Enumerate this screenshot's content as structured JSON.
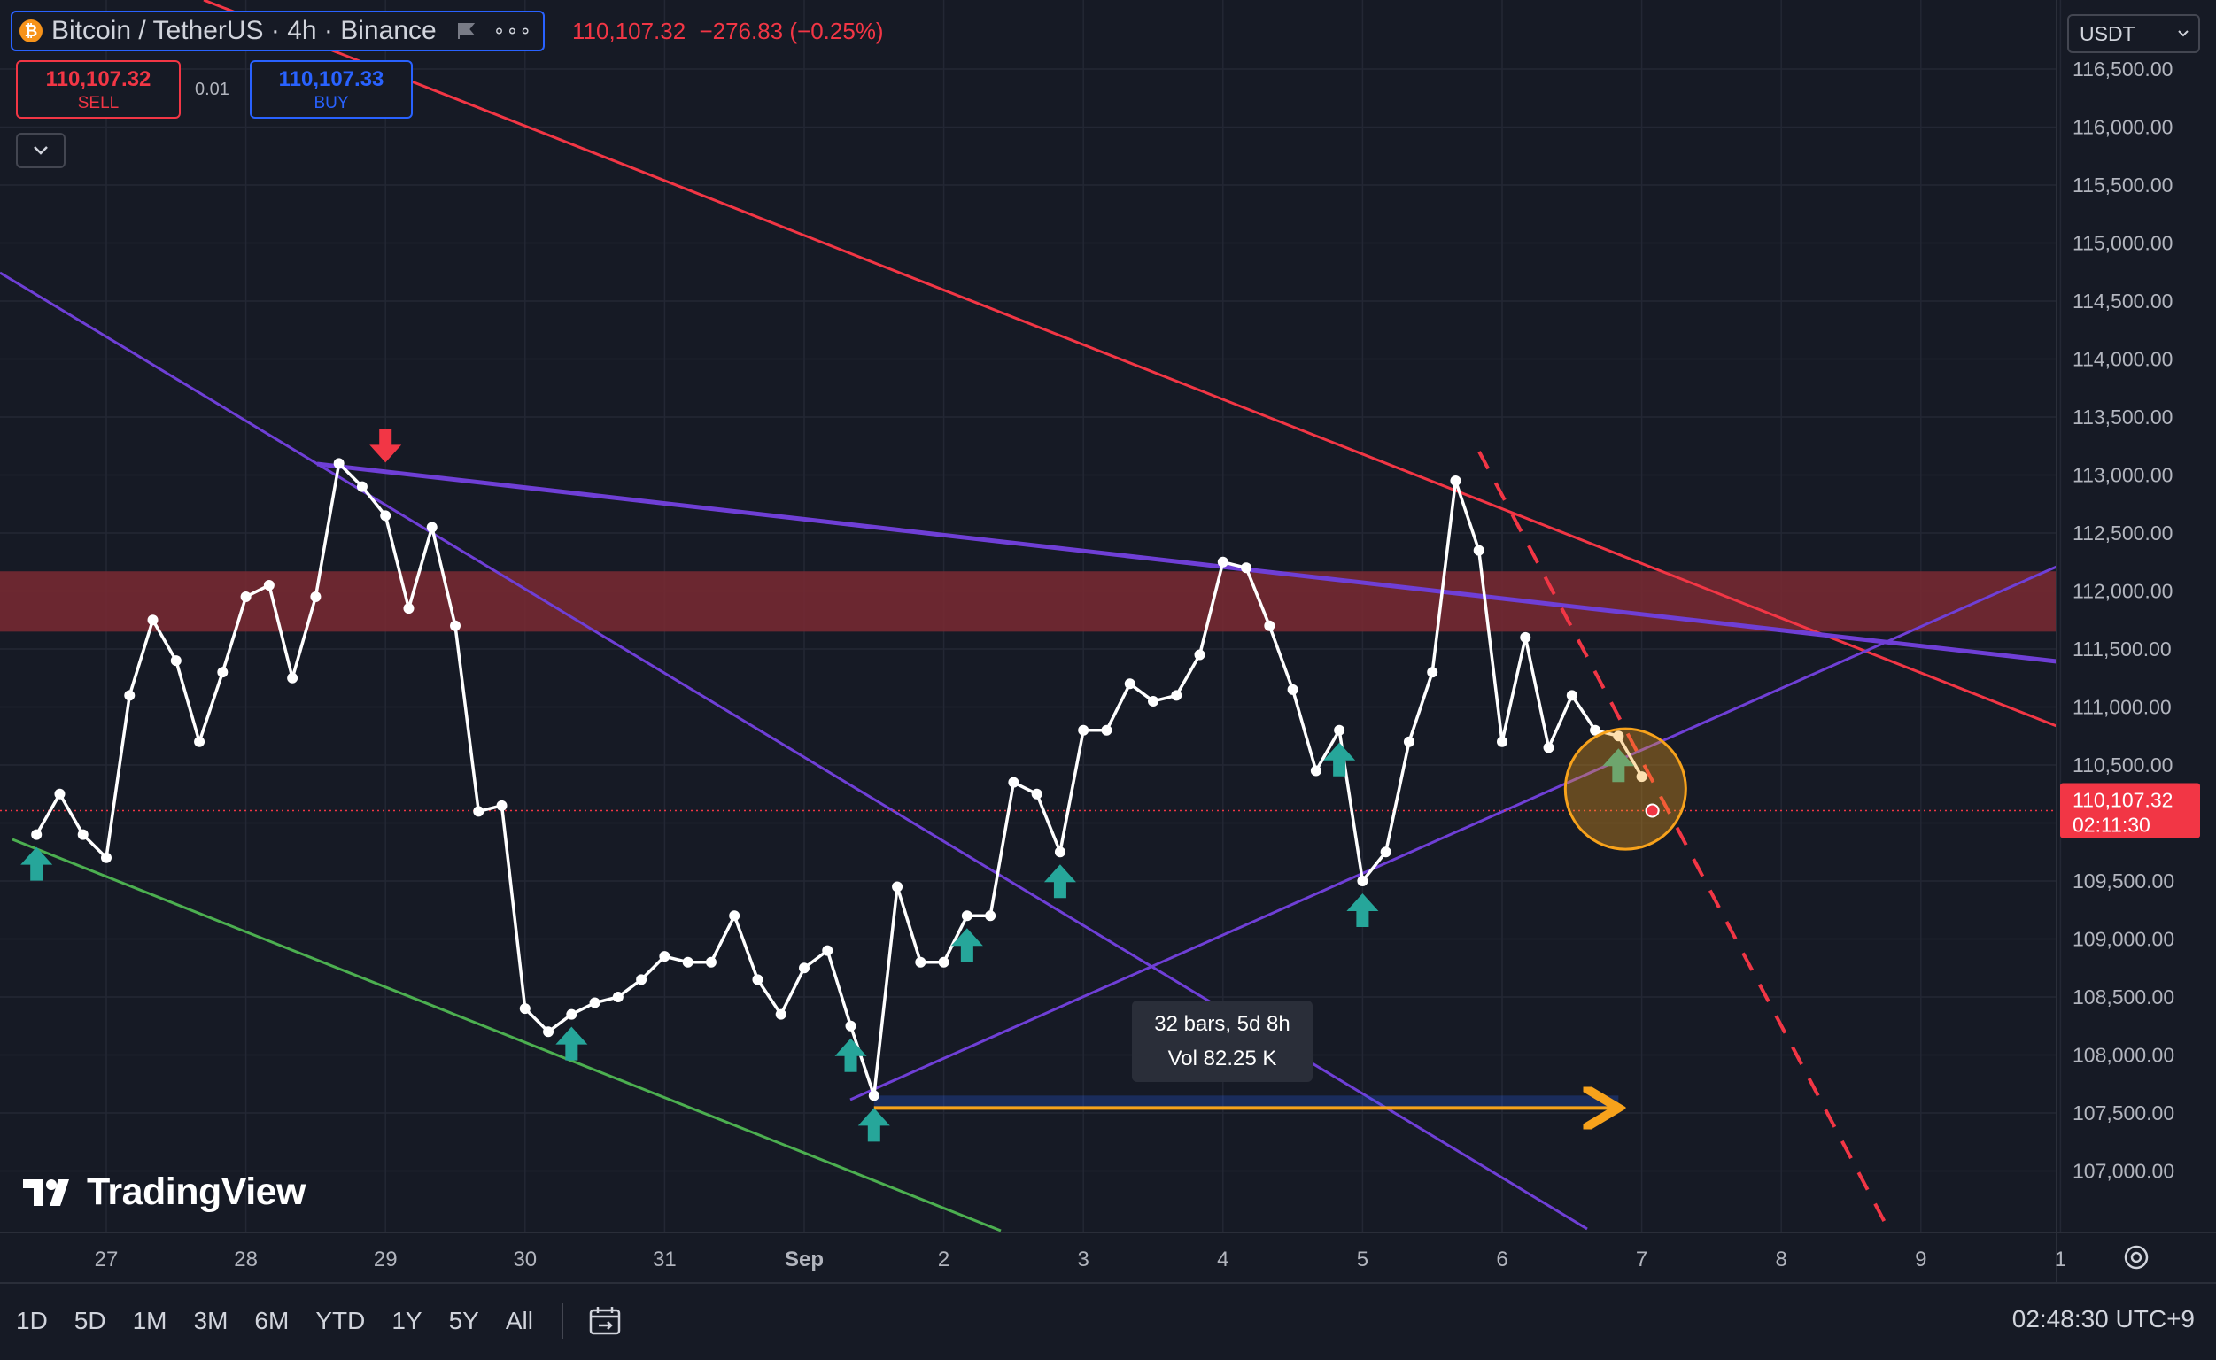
{
  "header": {
    "symbol_title": "Bitcoin / TetherUS · 4h · Binance",
    "last_price_text": "110,107.32",
    "change_text": "−276.83 (−0.25%)"
  },
  "trade": {
    "sell_price": "110,107.32",
    "sell_label": "SELL",
    "spread": "0.01",
    "buy_price": "110,107.33",
    "buy_label": "BUY"
  },
  "currency": "USDT",
  "price_label": {
    "price": "110,107.32",
    "countdown": "02:11:30"
  },
  "measure": {
    "bars": "32 bars, 5d 8h",
    "volume": "Vol 82.25 K"
  },
  "ranges": [
    "1D",
    "5D",
    "1M",
    "3M",
    "6M",
    "YTD",
    "1Y",
    "5Y",
    "All"
  ],
  "clock": "02:48:30 UTC+9",
  "logo_text": "TradingView",
  "colors": {
    "background": "#161a25",
    "line": "#ffffff",
    "resistance_zone": "#7a2a33",
    "red_trend": "#f23645",
    "purple_trend": "#6f3fd6",
    "green_trend": "#4caf50",
    "buy_arrow": "#26a69a",
    "sell_arrow": "#f23645",
    "highlight": "#f7a21b"
  },
  "chart_data": {
    "type": "line",
    "x_tick_labels": [
      "27",
      "28",
      "29",
      "30",
      "31",
      "Sep",
      "2",
      "3",
      "4",
      "5",
      "6",
      "7",
      "8",
      "9",
      "1"
    ],
    "y_tick_labels": [
      "116,500.00",
      "116,000.00",
      "115,500.00",
      "115,000.00",
      "114,500.00",
      "114,000.00",
      "113,500.00",
      "113,000.00",
      "112,500.00",
      "112,000.00",
      "111,500.00",
      "111,000.00",
      "110,500.00",
      "110,000.00",
      "109,500.00",
      "109,000.00",
      "108,500.00",
      "108,000.00",
      "107,500.00",
      "107,000.00"
    ],
    "ylim": [
      106600,
      116600
    ],
    "series": [
      {
        "x": [
          "2025-08-26 12:00",
          "2025-08-26 16:00",
          "2025-08-26 20:00",
          "2025-08-27 00:00",
          "2025-08-27 04:00",
          "2025-08-27 08:00",
          "2025-08-27 12:00",
          "2025-08-27 16:00",
          "2025-08-27 20:00",
          "2025-08-28 00:00",
          "2025-08-28 04:00",
          "2025-08-28 08:00",
          "2025-08-28 12:00",
          "2025-08-28 16:00",
          "2025-08-28 20:00",
          "2025-08-29 00:00",
          "2025-08-29 04:00",
          "2025-08-29 08:00",
          "2025-08-29 12:00",
          "2025-08-29 16:00",
          "2025-08-29 20:00",
          "2025-08-30 00:00",
          "2025-08-30 04:00",
          "2025-08-30 08:00",
          "2025-08-30 12:00",
          "2025-08-30 16:00",
          "2025-08-30 20:00",
          "2025-08-31 00:00",
          "2025-08-31 04:00",
          "2025-08-31 08:00",
          "2025-08-31 12:00",
          "2025-08-31 16:00",
          "2025-08-31 20:00",
          "2025-09-01 00:00",
          "2025-09-01 04:00",
          "2025-09-01 08:00",
          "2025-09-01 12:00",
          "2025-09-01 16:00",
          "2025-09-01 20:00",
          "2025-09-02 00:00",
          "2025-09-02 04:00",
          "2025-09-02 08:00",
          "2025-09-02 12:00",
          "2025-09-02 16:00",
          "2025-09-02 20:00",
          "2025-09-03 00:00",
          "2025-09-03 04:00",
          "2025-09-03 08:00",
          "2025-09-03 12:00",
          "2025-09-03 16:00",
          "2025-09-03 20:00",
          "2025-09-04 00:00",
          "2025-09-04 04:00",
          "2025-09-04 08:00",
          "2025-09-04 12:00",
          "2025-09-04 16:00",
          "2025-09-04 20:00",
          "2025-09-05 00:00",
          "2025-09-05 04:00",
          "2025-09-05 08:00",
          "2025-09-05 12:00",
          "2025-09-05 16:00",
          "2025-09-05 20:00",
          "2025-09-06 00:00",
          "2025-09-06 04:00",
          "2025-09-06 08:00",
          "2025-09-06 12:00",
          "2025-09-06 16:00",
          "2025-09-06 20:00",
          "2025-09-07 00:00"
        ],
        "values": [
          109900,
          110250,
          109900,
          109700,
          111100,
          111750,
          111400,
          110700,
          111300,
          111950,
          112050,
          111250,
          111950,
          113100,
          112900,
          112650,
          111850,
          112550,
          111700,
          110100,
          110150,
          108400,
          108200,
          108350,
          108450,
          108500,
          108650,
          108850,
          108800,
          108800,
          109200,
          108650,
          108350,
          108750,
          108900,
          108250,
          107650,
          109450,
          108800,
          108800,
          109200,
          109200,
          110350,
          110250,
          109750,
          110800,
          110800,
          111200,
          111050,
          111100,
          111450,
          112250,
          112200,
          111700,
          111150,
          110450,
          110800,
          109500,
          109750,
          110700,
          111300,
          112950,
          112350,
          110700,
          111600,
          110650,
          111100,
          110800,
          110750,
          110400
        ]
      }
    ],
    "current_price": 110107.32,
    "annotations": {
      "resistance_zone": [
        111650,
        112170
      ],
      "measure_tool": {
        "from": "2025-09-01 12:00",
        "to": "2025-09-06 20:00",
        "price": 107650,
        "label_bars": "32 bars, 5d 8h",
        "label_volume": "Vol 82.25 K"
      },
      "sell_signals": [
        "2025-08-29 00:00"
      ],
      "buy_signals": [
        "2025-08-26 12:00",
        "2025-08-30 08:00",
        "2025-09-01 08:00",
        "2025-09-01 12:00",
        "2025-09-02 04:00",
        "2025-09-02 20:00",
        "2025-09-04 20:00",
        "2025-09-05 00:00",
        "2025-09-06 20:00"
      ],
      "highlight_circle": "2025-09-06 20:00"
    }
  }
}
